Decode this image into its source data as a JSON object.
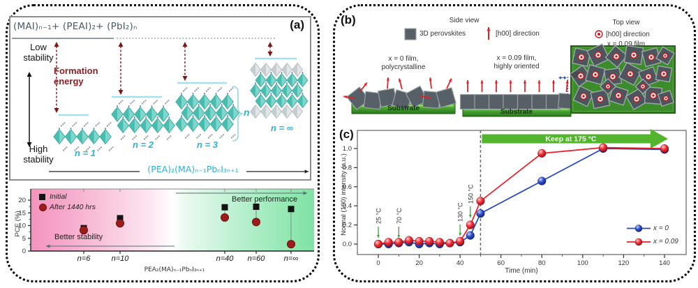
{
  "colors": {
    "teal_fill": "#7ed7cd",
    "teal_dark": "#49bcb0",
    "teal_stroke": "#2f9d92",
    "gray_fill": "#e2e6e8",
    "gray_dark": "#c6cdd1",
    "cyan_text": "#29b2d8",
    "cyan_line": "#a5e0ec",
    "dark_red": "#7d1517",
    "pink": "#f493bd",
    "green": "#80e3a4",
    "substrate_green": "#3e9c2e",
    "blue_series": "#2544c4",
    "red_series": "#ee1c25",
    "arrow_green": "#53b42e"
  },
  "panel_a": {
    "label": "(a)",
    "top_formula": "(MAI)ₙ₋₁+ (PEAI)₂+ (PbI₂)ₙ",
    "low_stability": "Low\nstability",
    "formation_energy": "Formation\nenergy",
    "high_stability": "High\nstability",
    "structures": [
      {
        "label": "n = 1"
      },
      {
        "label": "n = 2"
      },
      {
        "label": "n = 3"
      },
      {
        "label": "n = ∞"
      }
    ],
    "brace_label": "n",
    "bottom_formula": "(PEA)₂(MA)ₙ₋₁PbₙI₃ₙ₊₁"
  },
  "panel_b": {
    "label": "(b)",
    "side_view_title": "Side view",
    "legend_square": "3D perovskites",
    "legend_arrow": "[h00] direction",
    "top_view_title": "Top view",
    "top_legend_symbol": "[h00] direction",
    "top_legend_film": "x = 0.09 film",
    "caption_left": "x = 0 film,\npolycrystalline",
    "caption_mid": "x = 0.09 film,\nhighly oriented",
    "angle": "≈3°",
    "substrate": "Substrate"
  },
  "panel_c": {
    "label": "(c)"
  },
  "chart_data": [
    {
      "type": "scatter",
      "categories": [
        "n=6",
        "n=10",
        "n=40",
        "n=60",
        "n=∞"
      ],
      "series": [
        {
          "name": "Initial",
          "marker": "square",
          "color": "#141414",
          "values": [
            9.0,
            12.9,
            17.2,
            17.4,
            16.5
          ]
        },
        {
          "name": "After 1440 hrs",
          "marker": "circle",
          "color": "#9c1c1c",
          "values": [
            8.2,
            10.9,
            13.2,
            11.4,
            2.7
          ]
        }
      ],
      "ylabel": "PCE (%)",
      "xlabel": "PEA₂(MA)ₙ₋₁PbₙI₃ₙ₊₁",
      "ylim": [
        0,
        24
      ],
      "yticks": [
        0,
        5,
        10,
        15,
        20
      ],
      "better_performance": "Better performance",
      "better_stability": "Better stability",
      "background": "pink-to-green gradient"
    },
    {
      "type": "line",
      "x": [
        0,
        5,
        10,
        15,
        20,
        25,
        30,
        35,
        40,
        45,
        50,
        80,
        110,
        140
      ],
      "series": [
        {
          "name": "x = 0",
          "color": "#2544c4",
          "values": [
            0,
            0,
            0.01,
            0.02,
            0,
            0.01,
            0,
            0.01,
            0.02,
            0.09,
            0.32,
            0.66,
            1.0,
            0.99
          ]
        },
        {
          "name": "x = 0.09",
          "color": "#ee1c25",
          "values": [
            0,
            0.02,
            0.02,
            0.04,
            0.03,
            0.03,
            0.02,
            0.01,
            0.03,
            0.2,
            0.45,
            0.95,
            1.01,
            1.0
          ]
        }
      ],
      "xlabel": "Time (min)",
      "ylabel": "Normal (100) intensity (a.u.)",
      "xticks": [
        0,
        20,
        40,
        60,
        80,
        100,
        120,
        140
      ],
      "yticks": [
        0,
        0.2,
        0.4,
        0.6,
        0.8,
        1.0
      ],
      "xlim": [
        -4,
        150
      ],
      "ylim": [
        -0.08,
        1.18
      ],
      "dashed_line_x": 50,
      "temp_marks": [
        {
          "text": "25 °C",
          "x": 0
        },
        {
          "text": "70 °C",
          "x": 10
        },
        {
          "text": "130 °C",
          "x": 40
        },
        {
          "text": "150 °C",
          "x": 45
        }
      ],
      "keep_arrow": {
        "text": "Keep at 175 °C",
        "from_x": 50
      }
    }
  ]
}
